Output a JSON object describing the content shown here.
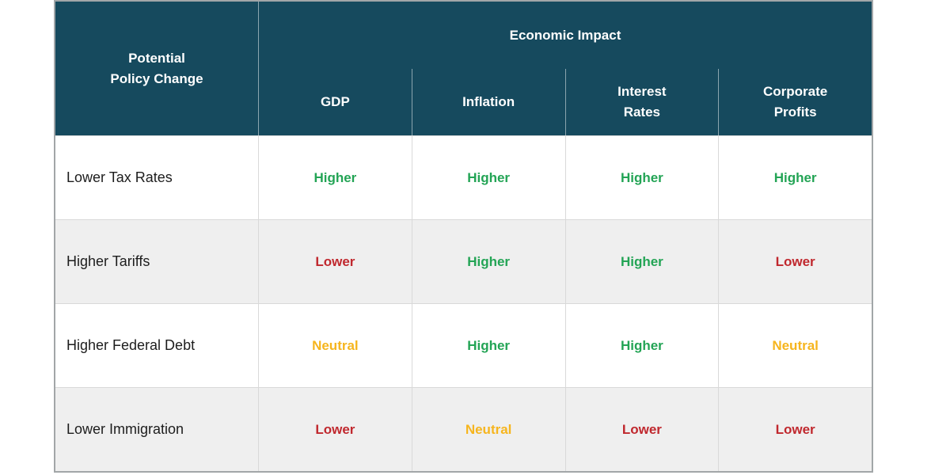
{
  "chart_data": {
    "type": "table",
    "corner_header": "Potential\nPolicy Change",
    "group_header": "Economic Impact",
    "columns": [
      "GDP",
      "Inflation",
      "Interest\nRates",
      "Corporate\nProfits"
    ],
    "rows": [
      {
        "policy": "Lower Tax Rates",
        "impacts": [
          "Higher",
          "Higher",
          "Higher",
          "Higher"
        ]
      },
      {
        "policy": "Higher Tariffs",
        "impacts": [
          "Lower",
          "Higher",
          "Higher",
          "Lower"
        ]
      },
      {
        "policy": "Higher Federal Debt",
        "impacts": [
          "Neutral",
          "Higher",
          "Higher",
          "Neutral"
        ]
      },
      {
        "policy": "Lower Immigration",
        "impacts": [
          "Lower",
          "Neutral",
          "Lower",
          "Lower"
        ]
      }
    ],
    "impact_colors": {
      "Higher": "#23a455",
      "Lower": "#c0282e",
      "Neutral": "#f6b51e"
    },
    "style_colors": {
      "header_background": "#164a5e",
      "header_text": "#ffffff",
      "alt_row_background": "#efefef",
      "grid_border": "#d9d9d9",
      "outer_border": "#a2a6a8"
    }
  }
}
